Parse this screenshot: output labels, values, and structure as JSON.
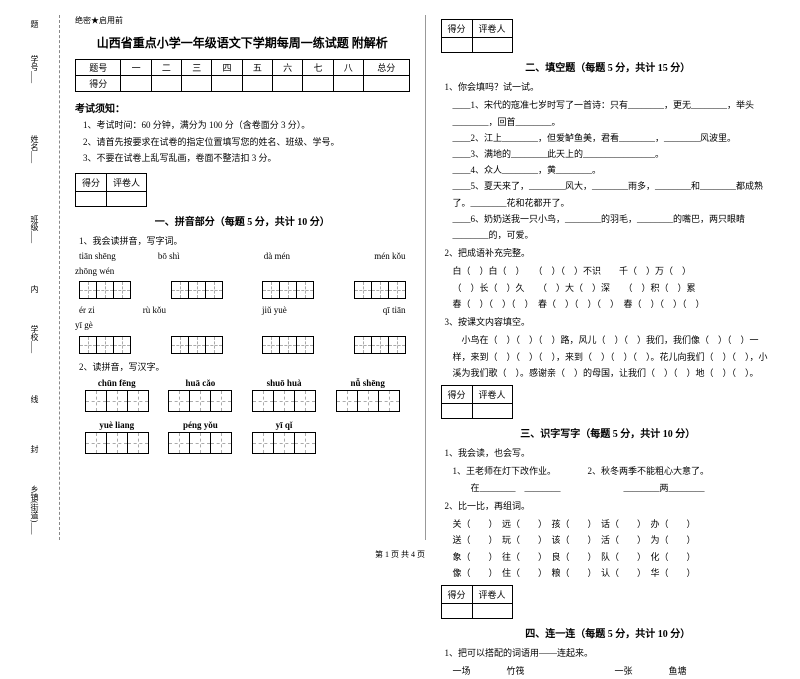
{
  "binding": {
    "labels": [
      "题",
      "学号___",
      "姓名___",
      "班级___",
      "内",
      "学校___",
      "线",
      "封",
      "乡镇(街道)___"
    ]
  },
  "tag": "绝密★启用前",
  "title": "山西省重点小学一年级语文下学期每周一练试题 附解析",
  "scoreTable": {
    "header": [
      "题号",
      "一",
      "二",
      "三",
      "四",
      "五",
      "六",
      "七",
      "八",
      "总分"
    ],
    "row": "得分"
  },
  "noticeHead": "考试须知：",
  "notices": [
    "1、考试时间：60 分钟，满分为 100 分（含卷面分 3 分）。",
    "2、请首先按要求在试卷的指定位置填写您的姓名、班级、学号。",
    "3、不要在试卷上乱写乱画，卷面不整洁扣 3 分。"
  ],
  "scorebox": {
    "c1": "得分",
    "c2": "评卷人"
  },
  "sec1": {
    "title": "一、拼音部分（每题 5 分，共计 10 分）",
    "q1": "1、我会读拼音，写字词。",
    "row1": [
      "tiān shēng",
      "bō shì",
      "",
      "dà mén",
      "",
      "mén kǒu"
    ],
    "row1b": "zhōng wén",
    "row2": [
      "ér  zi",
      "rù  kǒu",
      "",
      "jiǔ  yuè",
      "",
      "qī  tiān"
    ],
    "row2b": "yī  gè",
    "q2": "2、读拼音，写汉字。",
    "blocks1": [
      "chūn fēng",
      "huā  cǎo",
      "shuō  huà",
      "nǚ shēng"
    ],
    "blocks2": [
      "yuè liang",
      "péng yǒu",
      "yī  qǐ",
      ""
    ]
  },
  "sec2": {
    "title": "二、填空题（每题 5 分，共计 15 分）",
    "q1": "1、你会填吗？试一试。",
    "lines1": [
      "____1、宋代的寇准七岁时写了一首诗：只有________，更无________，举头________，回首________。",
      "____2、江上________，但爱鲈鱼美，君看________，________风波里。",
      "____3、满地的________此天上的________________。",
      "____4、众人________，黄________。",
      "____5、夏天来了，________风大，________雨多，________和________都成熟了。________花和花都开了。",
      "____6、奶奶送我一只小鸟，________的羽毛，________的嘴巴，两只眼睛________的，可爱。"
    ],
    "q2": "2、把成语补充完整。",
    "lines2": [
      "白（　）白（　）　　（　）（　）不识　　千（　）万（　）",
      "（　）长（　）久　　（　）大（　）深　　（　）积（　）累",
      "春（　）（　）（　）　春（　）（　）（　）　春（　）（　）（　）"
    ],
    "q3": "3、按课文内容填空。",
    "lines3": [
      "　小鸟在（　）（　）（　）路，风儿（　）（　）我们，我们像（　）（　）一样，来到（　）（　）（　），来到（　）（　）（　）。花儿向我们（　）（　），小溪为我们歌（　）。感谢亲（　）的母国，让我们（　）（　）地（　）（　）。"
    ]
  },
  "sec3": {
    "title": "三、识字写字（每题 5 分，共计 10 分）",
    "q1": "1、我会读，也会写。",
    "lines1": [
      "1、王老师在灯下改作业。　　　　2、秋冬两季不能粗心大意了。",
      "　　在________　________　　　　　　　________两________"
    ],
    "q2": "2、比一比，再组词。",
    "lines2": [
      "关（　　）　远（　　）　孩（　　）　话（　　）　办（　　）",
      "送（　　）　玩（　　）　该（　　）　活（　　）　为（　　）",
      "象（　　）　往（　　）　良（　　）　队（　　）　化（　　）",
      "像（　　）　住（　　）　粮（　　）　认（　　）　华（　　）"
    ]
  },
  "sec4": {
    "title": "四、连一连（每题 5 分，共计 10 分）",
    "q1": "1、把可以搭配的词语用——连起来。",
    "line": "一场　　　　竹筏　　　　　　　　　　一张　　　　鱼塘"
  },
  "footer": "第 1 页 共 4 页"
}
